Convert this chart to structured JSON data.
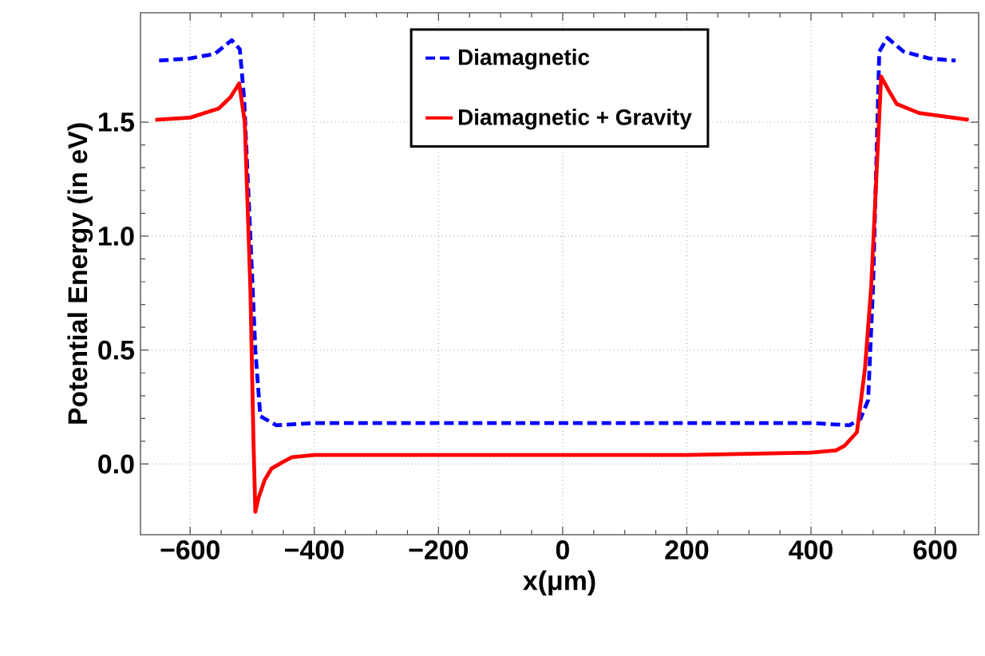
{
  "chart_data": {
    "type": "line",
    "xlabel": "x(μm)",
    "ylabel": "Potential Energy (in eV)",
    "xlim": [
      -680,
      670
    ],
    "ylim": [
      -0.31,
      1.98
    ],
    "xticks": [
      {
        "value": -600,
        "label": "−600"
      },
      {
        "value": -400,
        "label": "−400"
      },
      {
        "value": -200,
        "label": "−200"
      },
      0,
      200,
      400,
      600
    ],
    "yticks": [
      {
        "value": 0,
        "label": "0.0"
      },
      {
        "value": 0.5,
        "label": "0.5"
      },
      {
        "value": 1,
        "label": "1.0"
      },
      {
        "value": 1.5,
        "label": "1.5"
      }
    ],
    "grid": true,
    "legend": "top",
    "series": [
      {
        "name": "Diamagnetic",
        "color": "#0000ff",
        "line_style": "dashed",
        "x": [
          -650,
          -600,
          -560,
          -533,
          -520,
          -513,
          -503,
          -495,
          -487,
          -461,
          -400,
          -200,
          0,
          200,
          400,
          462,
          480,
          492,
          500,
          510,
          523,
          549,
          590,
          633
        ],
        "values": [
          1.77,
          1.78,
          1.8,
          1.86,
          1.82,
          1.6,
          1.0,
          0.5,
          0.21,
          0.17,
          0.18,
          0.18,
          0.18,
          0.18,
          0.18,
          0.17,
          0.2,
          0.28,
          0.78,
          1.81,
          1.87,
          1.81,
          1.78,
          1.77
        ]
      },
      {
        "name": "Diamagnetic + Gravity",
        "color": "#ff0000",
        "line_style": "solid",
        "x": [
          -656,
          -600,
          -554,
          -535,
          -521,
          -512,
          -503,
          -498,
          -495,
          -490,
          -480,
          -469,
          -450,
          -436,
          -400,
          -200,
          0,
          200,
          400,
          440,
          454,
          474,
          487,
          497,
          506,
          513,
          525,
          538,
          574,
          654
        ],
        "values": [
          1.51,
          1.52,
          1.56,
          1.61,
          1.67,
          1.5,
          0.77,
          0.1,
          -0.21,
          -0.15,
          -0.07,
          -0.02,
          0.01,
          0.03,
          0.04,
          0.04,
          0.04,
          0.04,
          0.05,
          0.06,
          0.08,
          0.14,
          0.42,
          0.78,
          1.3,
          1.7,
          1.64,
          1.58,
          1.54,
          1.51
        ]
      }
    ]
  }
}
